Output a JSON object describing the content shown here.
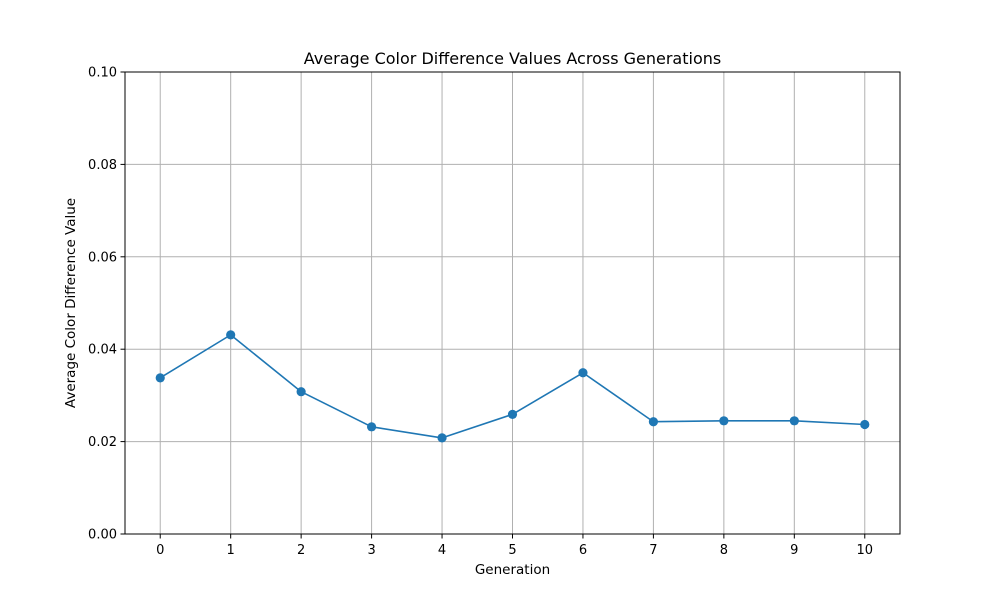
{
  "chart_data": {
    "type": "line",
    "title": "Average Color Difference Values Across Generations",
    "xlabel": "Generation",
    "ylabel": "Average Color Difference Value",
    "x": [
      0,
      1,
      2,
      3,
      4,
      5,
      6,
      7,
      8,
      9,
      10
    ],
    "series": [
      {
        "values": [
          0.0338,
          0.0431,
          0.0308,
          0.0232,
          0.0208,
          0.0259,
          0.0349,
          0.0243,
          0.0245,
          0.0245,
          0.0237
        ],
        "color": "#1f77b4",
        "marker": "circle"
      }
    ],
    "xticks": [
      "0",
      "1",
      "2",
      "3",
      "4",
      "5",
      "6",
      "7",
      "8",
      "9",
      "10"
    ],
    "yticks": [
      "0.00",
      "0.02",
      "0.04",
      "0.06",
      "0.08",
      "0.10"
    ],
    "xlim": [
      -0.5,
      10.5
    ],
    "ylim": [
      0,
      0.1
    ],
    "grid": true,
    "grid_color": "#b0b0b0",
    "legend": null
  }
}
